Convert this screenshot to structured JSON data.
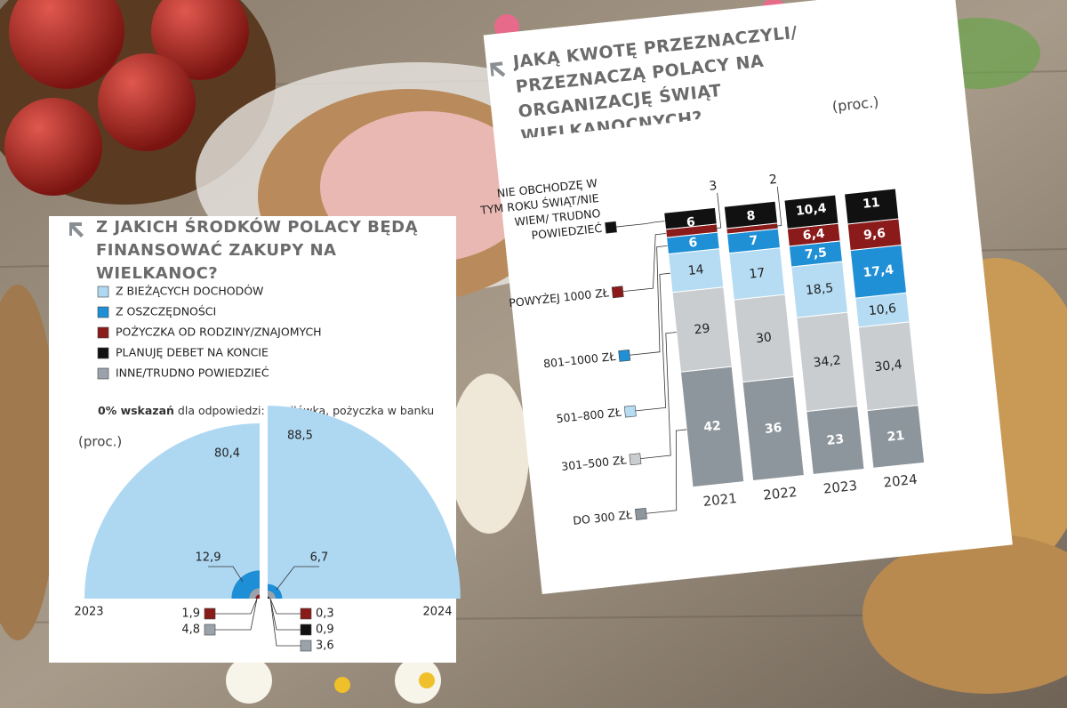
{
  "chart_data": [
    {
      "type": "semicircle",
      "title": "Z JAKICH ŚRODKÓW POLACY BĘDĄ FINANSOWAĆ ZAKUPY NA WIELKANOC?",
      "note_bold": "0% wskazań",
      "note": "dla odpowiedzi: chwilówka, pożyczka w banku",
      "unit": "(proc.)",
      "categories": [
        "2023",
        "2024"
      ],
      "series": [
        {
          "name": "Z BIEŻĄCYCH DOCHODÓW",
          "color": "#aed8f2",
          "values": [
            80.4,
            88.5
          ],
          "value_labels": [
            "80,4",
            "88,5"
          ]
        },
        {
          "name": "Z OSZCZĘDNOŚCI",
          "color": "#1e8fd6",
          "values": [
            12.9,
            6.7
          ],
          "value_labels": [
            "12,9",
            "6,7"
          ]
        },
        {
          "name": "POŻYCZKA OD RODZINY/ZNAJOMYCH",
          "color": "#8b1a1a",
          "values": [
            1.9,
            0.3
          ],
          "value_labels": [
            "1,9",
            "0,3"
          ]
        },
        {
          "name": "PLANUJĘ DEBET NA KONCIE",
          "color": "#111111",
          "values": [
            null,
            0.9
          ],
          "value_labels": [
            null,
            "0,9"
          ]
        },
        {
          "name": "INNE/TRUDNO POWIEDZIEĆ",
          "color": "#9aa3ab",
          "values": [
            4.8,
            3.6
          ],
          "value_labels": [
            "4,8",
            "3,6"
          ]
        }
      ]
    },
    {
      "type": "stacked_bar",
      "title": "JAKĄ KWOTĘ PRZEZNACZYLI/ PRZEZNACZĄ POLACY NA ORGANIZACJĘ ŚWIĄT WIELKANOCNYCH?",
      "unit": "(proc.)",
      "categories": [
        "2021",
        "2022",
        "2023",
        "2024"
      ],
      "series": [
        {
          "name": "DO 300 ZŁ",
          "color": "#8e969d",
          "values": [
            42,
            36,
            23,
            21
          ]
        },
        {
          "name": "301–500 ZŁ",
          "color": "#c9cdd0",
          "values": [
            29,
            30,
            34.2,
            30.4
          ],
          "value_labels": [
            "29",
            "30",
            "34,2",
            "30,4"
          ]
        },
        {
          "name": "501–800 ZŁ",
          "color": "#b5dcf3",
          "values": [
            14,
            17,
            18.5,
            10.6
          ],
          "value_labels": [
            "14",
            "17",
            "18,5",
            "10,6"
          ]
        },
        {
          "name": "801–1000 ZŁ",
          "color": "#1f8fd6",
          "values": [
            6,
            7,
            7.5,
            17.4
          ],
          "value_labels": [
            "6",
            "7",
            "7,5",
            "17,4"
          ]
        },
        {
          "name": "POWYŻEJ 1000 ZŁ",
          "color": "#8b1a1a",
          "values": [
            3,
            2,
            6.4,
            9.6
          ],
          "value_labels": [
            "3",
            "2",
            "6,4",
            "9,6"
          ]
        },
        {
          "name": "NIE OBCHODZĘ W TYM ROKU ŚWIĄT/NIE WIEM/ TRUDNO POWIEDZIEĆ",
          "color": "#111111",
          "values": [
            6,
            8,
            10.4,
            11
          ],
          "value_labels": [
            "6",
            "8",
            "10,4",
            "11"
          ]
        }
      ]
    }
  ]
}
